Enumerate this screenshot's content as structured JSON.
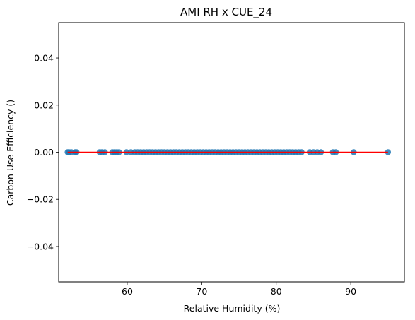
{
  "chart_data": {
    "type": "scatter",
    "title": "AMI RH x CUE_24",
    "xlabel": "Relative Humidity (%)",
    "ylabel": "Carbon Use Efficiency ()",
    "xlim": [
      50.8,
      97.2
    ],
    "ylim": [
      -0.055,
      0.055
    ],
    "xticks": [
      60,
      70,
      80,
      90
    ],
    "yticks": [
      -0.04,
      -0.02,
      0.0,
      0.02,
      0.04
    ],
    "xtick_labels": [
      "60",
      "70",
      "80",
      "90"
    ],
    "ytick_labels": [
      "−0.04",
      "−0.02",
      "0.00",
      "0.02",
      "0.04"
    ],
    "grid": false,
    "legend": "none",
    "point_color": "#1f77b4",
    "line_color": "#ff0000",
    "points_x": [
      52.0,
      52.2,
      52.5,
      53.0,
      53.2,
      56.3,
      56.6,
      57.0,
      58.0,
      58.3,
      58.6,
      58.9,
      59.9,
      60.5,
      61.0,
      61.4,
      61.8,
      62.2,
      62.6,
      63.0,
      63.4,
      63.8,
      64.2,
      64.6,
      65.0,
      65.4,
      65.8,
      66.2,
      66.6,
      67.0,
      67.4,
      67.8,
      68.2,
      68.6,
      69.0,
      69.4,
      69.8,
      70.2,
      70.6,
      71.0,
      71.4,
      71.8,
      72.2,
      72.6,
      73.0,
      73.4,
      73.8,
      74.2,
      74.6,
      75.0,
      75.4,
      75.8,
      76.2,
      76.6,
      77.0,
      77.4,
      77.8,
      78.2,
      78.6,
      79.0,
      79.4,
      79.8,
      80.2,
      80.6,
      81.0,
      81.4,
      81.8,
      82.2,
      82.6,
      83.0,
      83.4,
      84.5,
      85.0,
      85.5,
      86.0,
      87.6,
      88.0,
      90.4,
      95.0
    ],
    "points_y": [
      0,
      0,
      0,
      0,
      0,
      0,
      0,
      0,
      0,
      0,
      0,
      0,
      0,
      0,
      0,
      0,
      0,
      0,
      0,
      0,
      0,
      0,
      0,
      0,
      0,
      0,
      0,
      0,
      0,
      0,
      0,
      0,
      0,
      0,
      0,
      0,
      0,
      0,
      0,
      0,
      0,
      0,
      0,
      0,
      0,
      0,
      0,
      0,
      0,
      0,
      0,
      0,
      0,
      0,
      0,
      0,
      0,
      0,
      0,
      0,
      0,
      0,
      0,
      0,
      0,
      0,
      0,
      0,
      0,
      0,
      0,
      0,
      0,
      0,
      0,
      0,
      0,
      0,
      0
    ],
    "fit_line": {
      "x": [
        52.0,
        95.0
      ],
      "y": [
        0,
        0
      ]
    }
  }
}
